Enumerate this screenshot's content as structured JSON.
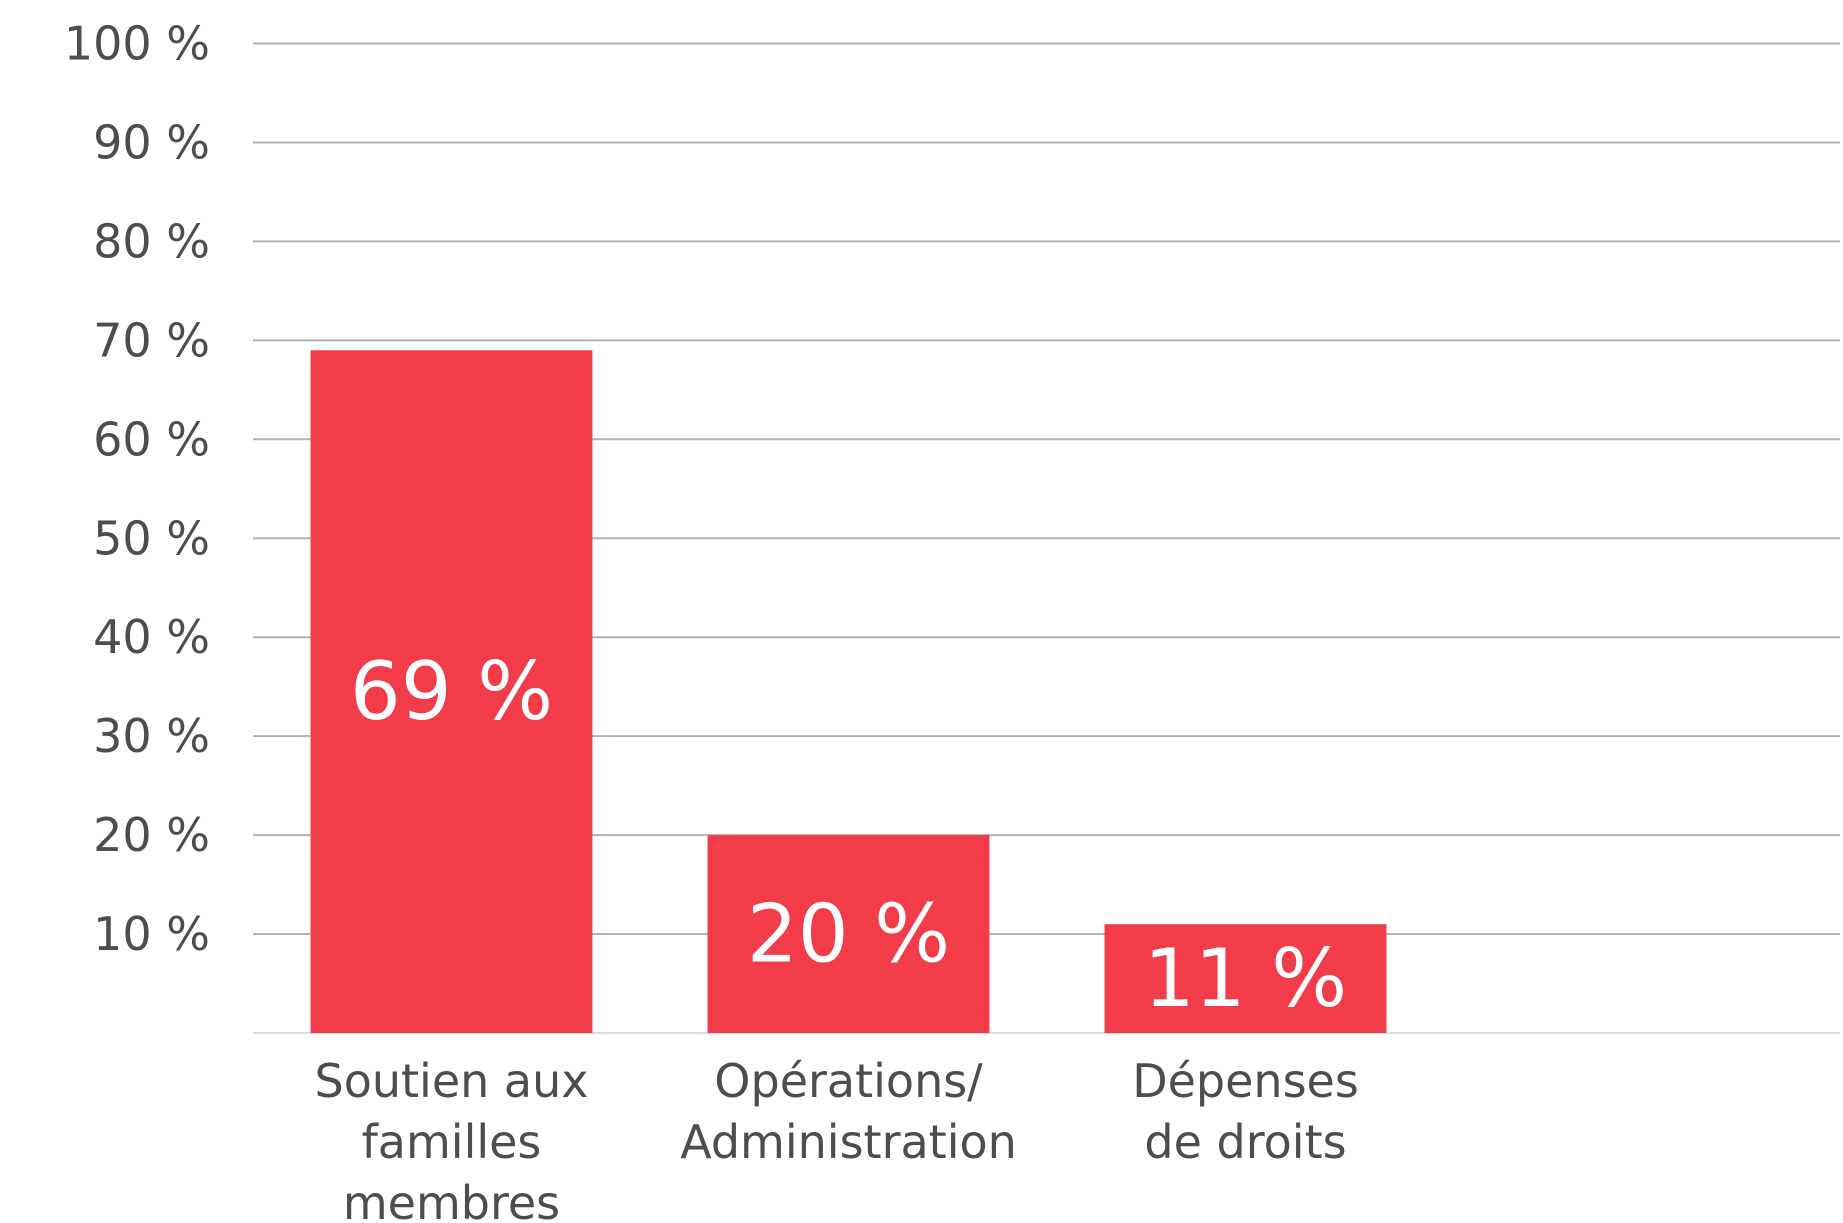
{
  "chart_data": {
    "type": "bar",
    "categories": [
      "Soutien aux\nfamilles\nmembres",
      "Opérations/\nAdministration",
      "Dépenses\nde droits"
    ],
    "values": [
      69,
      20,
      11
    ],
    "value_labels": [
      "69 %",
      "20 %",
      "11 %"
    ],
    "color": "#f23c4a",
    "ylim": [
      0,
      100
    ],
    "yticks": [
      {
        "value": 10,
        "label": "10 %"
      },
      {
        "value": 20,
        "label": "20 %"
      },
      {
        "value": 30,
        "label": "30 %"
      },
      {
        "value": 40,
        "label": "40 %"
      },
      {
        "value": 50,
        "label": "50 %"
      },
      {
        "value": 60,
        "label": "60 %"
      },
      {
        "value": 70,
        "label": "70 %"
      },
      {
        "value": 80,
        "label": "80 %"
      },
      {
        "value": 90,
        "label": "90 %"
      },
      {
        "value": 100,
        "label": "100 %"
      }
    ],
    "grid": true
  }
}
